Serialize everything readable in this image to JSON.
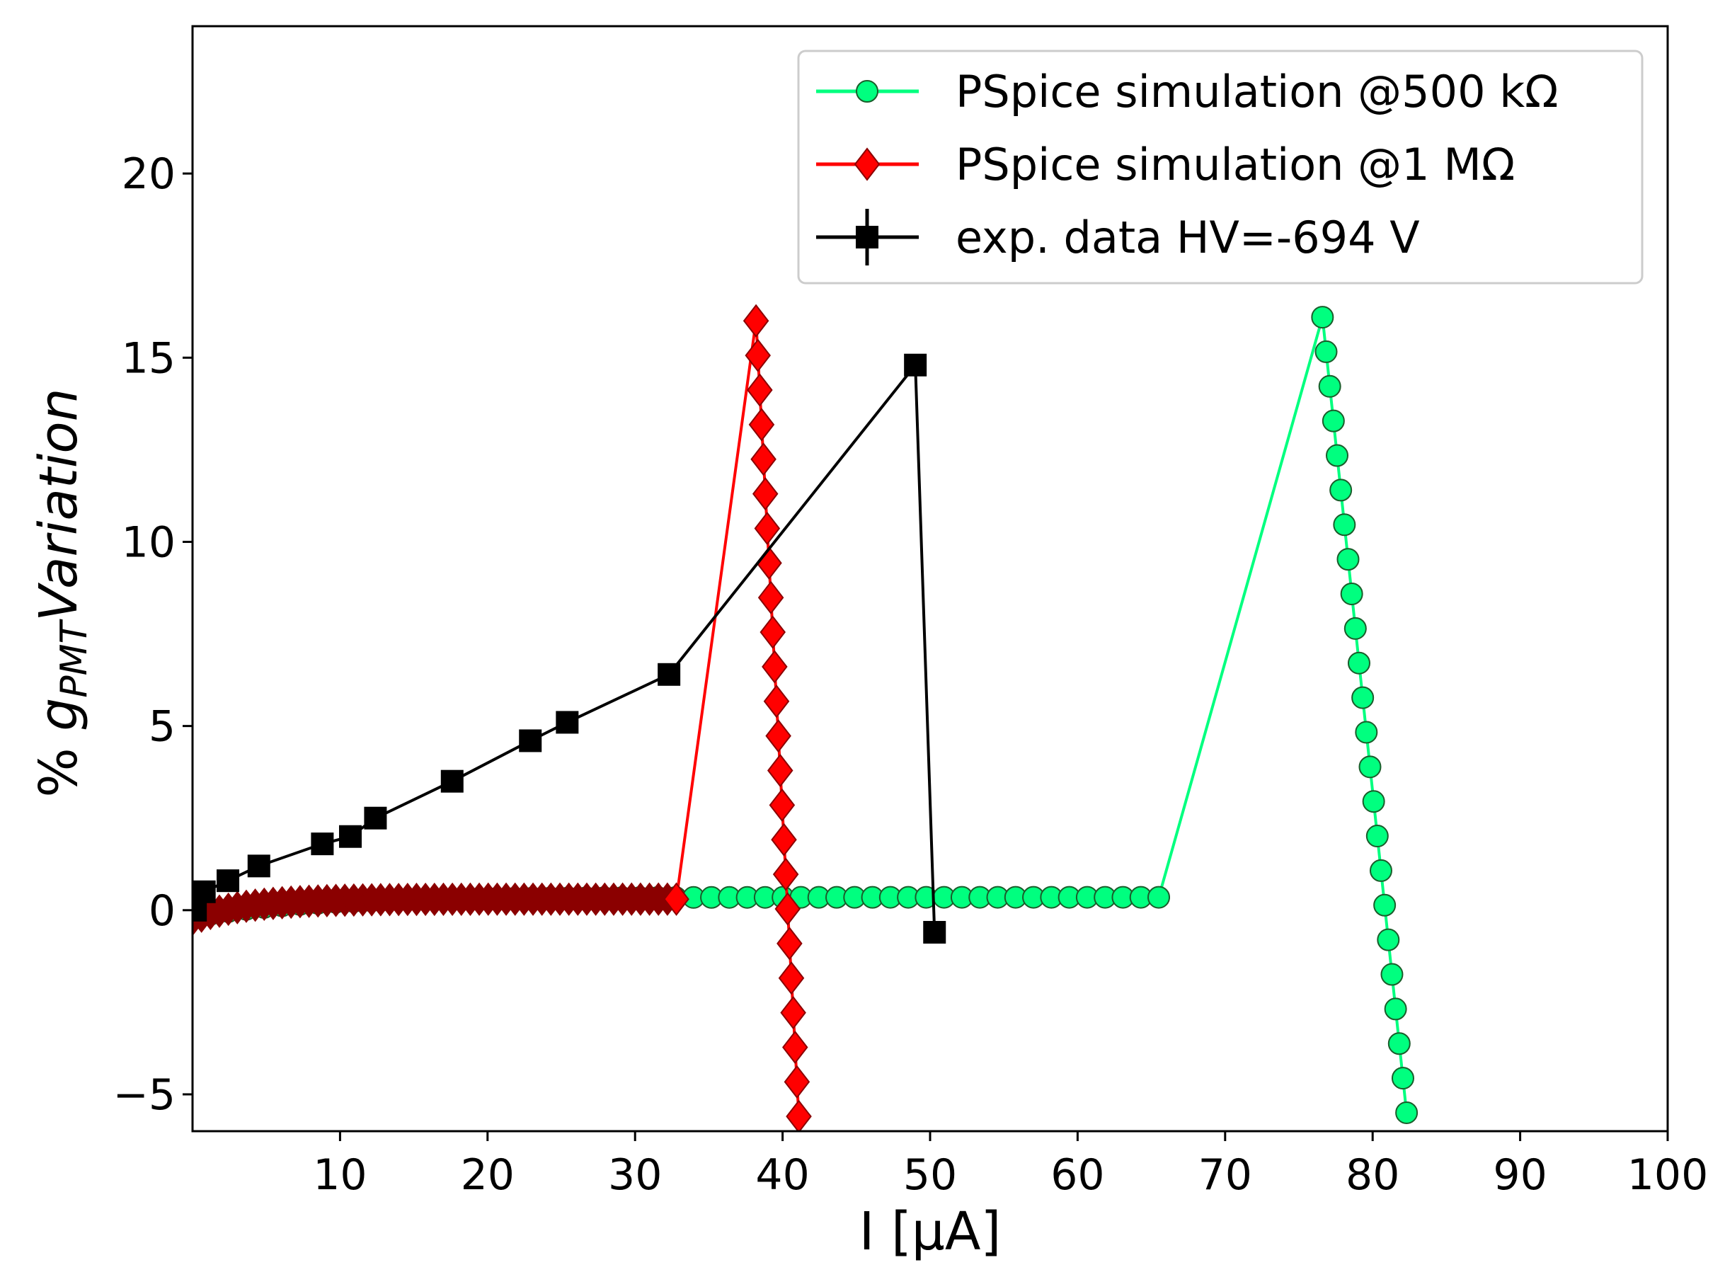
{
  "chart_data": {
    "type": "line",
    "title": "",
    "xlabel": "I [μA]",
    "ylabel_prefix": "% ",
    "ylabel_g": "g",
    "ylabel_sub": "PMT",
    "ylabel_suffix": "Variation",
    "xlim": [
      0,
      100
    ],
    "ylim": [
      -6,
      24
    ],
    "xticks": [
      10,
      20,
      30,
      40,
      50,
      60,
      70,
      80,
      90,
      100
    ],
    "yticks": [
      -5,
      0,
      5,
      10,
      15,
      20
    ],
    "xtick_labels": [
      "10",
      "20",
      "30",
      "40",
      "50",
      "60",
      "70",
      "80",
      "90",
      "100"
    ],
    "ytick_labels": [
      "−5",
      "0",
      "5",
      "10",
      "15",
      "20"
    ],
    "grid": false,
    "legend_position": "top-right",
    "series": [
      {
        "name": "PSpice simulation @500 kΩ",
        "marker": "circle",
        "color": "#00ff7f",
        "edge_color": "#1a5c2a",
        "low_branch": {
          "x_start": 0,
          "x_end": 65.5,
          "count": 55
        },
        "high_branch": {
          "x_start": 76.6,
          "x_end": 82.3,
          "y_start": 16.1,
          "y_end": -5.5,
          "count": 24
        }
      },
      {
        "name": "PSpice simulation @1 MΩ",
        "marker": "diamond",
        "color": "#ff0000",
        "low_color": "#8b0000",
        "edge_color": "#8b0000",
        "low_branch": {
          "x_start": 0,
          "x_end": 32.8,
          "count": 55
        },
        "high_branch": {
          "x_start": 38.2,
          "x_end": 41.1,
          "y_start": 16.0,
          "y_end": -5.6,
          "count": 24
        }
      },
      {
        "name": "exp. data HV=-694 V",
        "marker": "square",
        "color": "#000000",
        "x": [
          0.2,
          0.8,
          2.4,
          4.5,
          8.8,
          10.7,
          12.4,
          17.6,
          22.9,
          25.4,
          32.3,
          49.0,
          50.3
        ],
        "y": [
          0.0,
          0.5,
          0.8,
          1.2,
          1.8,
          2.0,
          2.5,
          3.5,
          4.6,
          5.1,
          6.4,
          14.8,
          -0.6
        ]
      }
    ]
  }
}
